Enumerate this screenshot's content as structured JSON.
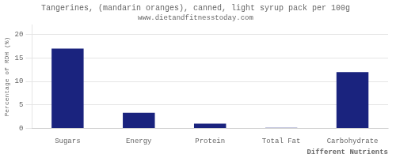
{
  "chart_data": {
    "type": "bar",
    "title": "Tangerines, (mandarin oranges), canned, light syrup pack per 100g",
    "subtitle": "www.dietandfitnesstoday.com",
    "categories": [
      "Sugars",
      "Energy",
      "Protein",
      "Total Fat",
      "Carbohydrate"
    ],
    "values": [
      17.0,
      3.3,
      1.0,
      0.1,
      12.0
    ],
    "color": "#1a237e",
    "xlabel": "Different Nutrients",
    "ylabel": "Percentage of RDH (%)",
    "ylim": [
      0,
      22
    ],
    "yticks": [
      0,
      5,
      10,
      15,
      20
    ],
    "grid": true
  }
}
